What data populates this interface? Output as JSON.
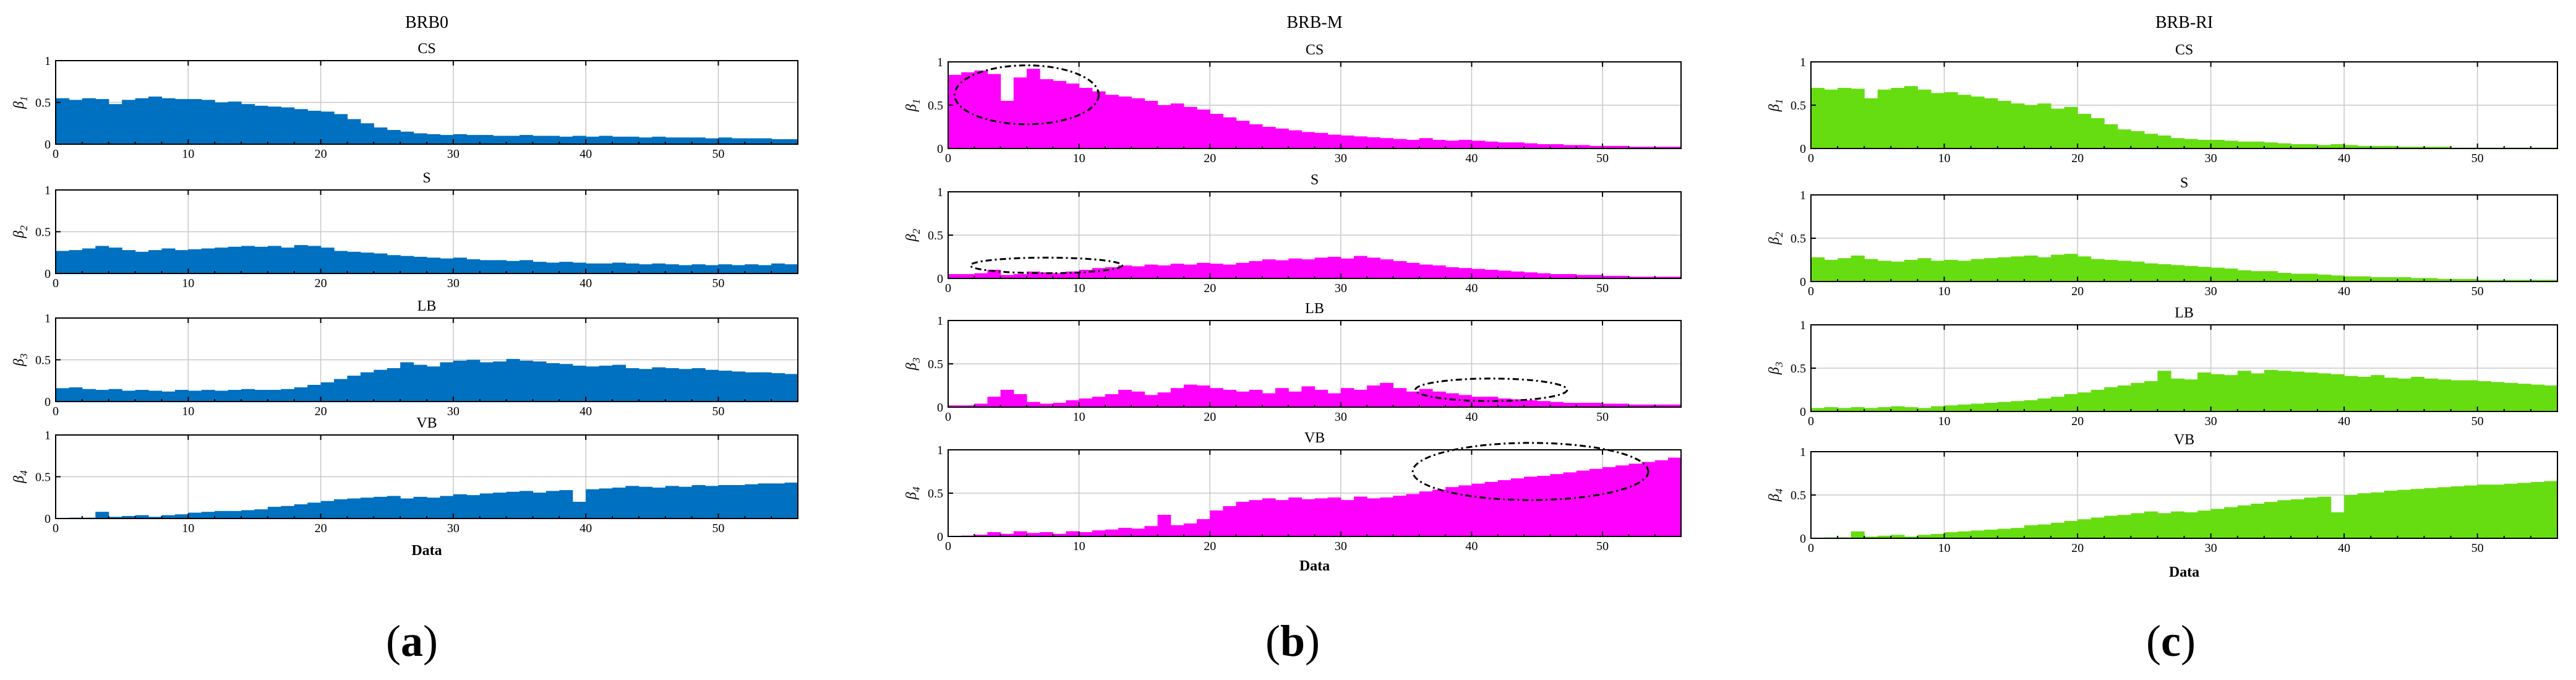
{
  "panels": [
    {
      "key": "a",
      "title": "BRB0",
      "caption_letter": "a",
      "color": "#0070c0",
      "xlabel": "Data",
      "subplots": [
        {
          "title": "CS",
          "ylabel": "β1",
          "ylabel_base": "β",
          "ylabel_sub": "1",
          "values": [
            0.55,
            0.53,
            0.55,
            0.54,
            0.48,
            0.53,
            0.55,
            0.57,
            0.55,
            0.54,
            0.54,
            0.53,
            0.5,
            0.51,
            0.48,
            0.46,
            0.45,
            0.44,
            0.42,
            0.4,
            0.39,
            0.36,
            0.3,
            0.25,
            0.2,
            0.17,
            0.15,
            0.13,
            0.12,
            0.11,
            0.12,
            0.11,
            0.11,
            0.1,
            0.1,
            0.11,
            0.1,
            0.1,
            0.09,
            0.1,
            0.09,
            0.1,
            0.09,
            0.09,
            0.08,
            0.09,
            0.08,
            0.08,
            0.08,
            0.07,
            0.08,
            0.07,
            0.07,
            0.07,
            0.06,
            0.06
          ]
        },
        {
          "title": "S",
          "ylabel": "β2",
          "ylabel_base": "β",
          "ylabel_sub": "2",
          "values": [
            0.27,
            0.28,
            0.3,
            0.33,
            0.31,
            0.28,
            0.26,
            0.28,
            0.3,
            0.28,
            0.29,
            0.3,
            0.31,
            0.32,
            0.33,
            0.32,
            0.33,
            0.31,
            0.34,
            0.33,
            0.31,
            0.27,
            0.26,
            0.25,
            0.24,
            0.22,
            0.21,
            0.2,
            0.19,
            0.18,
            0.19,
            0.17,
            0.16,
            0.16,
            0.15,
            0.16,
            0.14,
            0.13,
            0.14,
            0.13,
            0.12,
            0.12,
            0.13,
            0.12,
            0.11,
            0.12,
            0.11,
            0.1,
            0.11,
            0.1,
            0.11,
            0.1,
            0.11,
            0.1,
            0.12,
            0.11
          ]
        },
        {
          "title": "LB",
          "ylabel": "β3",
          "ylabel_base": "β",
          "ylabel_sub": "3",
          "values": [
            0.16,
            0.17,
            0.15,
            0.14,
            0.15,
            0.13,
            0.14,
            0.13,
            0.12,
            0.14,
            0.13,
            0.14,
            0.13,
            0.14,
            0.15,
            0.14,
            0.14,
            0.15,
            0.17,
            0.2,
            0.23,
            0.27,
            0.31,
            0.35,
            0.38,
            0.4,
            0.47,
            0.44,
            0.42,
            0.47,
            0.49,
            0.5,
            0.47,
            0.48,
            0.51,
            0.49,
            0.48,
            0.46,
            0.45,
            0.43,
            0.42,
            0.43,
            0.44,
            0.4,
            0.39,
            0.41,
            0.4,
            0.39,
            0.4,
            0.38,
            0.37,
            0.36,
            0.35,
            0.35,
            0.34,
            0.33
          ]
        },
        {
          "title": "VB",
          "ylabel": "β4",
          "ylabel_base": "β",
          "ylabel_sub": "4",
          "values": [
            0.0,
            0.01,
            0.01,
            0.08,
            0.02,
            0.03,
            0.04,
            0.02,
            0.04,
            0.05,
            0.07,
            0.08,
            0.09,
            0.09,
            0.1,
            0.11,
            0.14,
            0.15,
            0.17,
            0.19,
            0.21,
            0.23,
            0.24,
            0.25,
            0.26,
            0.27,
            0.24,
            0.26,
            0.25,
            0.27,
            0.29,
            0.28,
            0.3,
            0.31,
            0.32,
            0.33,
            0.31,
            0.33,
            0.34,
            0.2,
            0.35,
            0.36,
            0.37,
            0.39,
            0.38,
            0.37,
            0.39,
            0.38,
            0.4,
            0.39,
            0.4,
            0.4,
            0.41,
            0.42,
            0.42,
            0.43
          ]
        }
      ]
    },
    {
      "key": "b",
      "title": "BRB-M",
      "caption_letter": "b",
      "color": "#ff00ff",
      "xlabel": "Data",
      "subplots": [
        {
          "title": "CS",
          "ylabel": "β1",
          "ylabel_base": "β",
          "ylabel_sub": "1",
          "values": [
            0.85,
            0.88,
            0.9,
            0.86,
            0.55,
            0.82,
            0.92,
            0.8,
            0.78,
            0.75,
            0.7,
            0.66,
            0.62,
            0.6,
            0.58,
            0.55,
            0.5,
            0.52,
            0.48,
            0.45,
            0.4,
            0.36,
            0.32,
            0.28,
            0.25,
            0.23,
            0.21,
            0.19,
            0.18,
            0.16,
            0.15,
            0.14,
            0.13,
            0.12,
            0.11,
            0.1,
            0.12,
            0.1,
            0.09,
            0.1,
            0.09,
            0.08,
            0.07,
            0.07,
            0.06,
            0.05,
            0.05,
            0.04,
            0.04,
            0.03,
            0.03,
            0.03,
            0.02,
            0.02,
            0.02,
            0.02
          ]
        },
        {
          "title": "S",
          "ylabel": "β2",
          "ylabel_base": "β",
          "ylabel_sub": "2",
          "values": [
            0.05,
            0.05,
            0.06,
            0.1,
            0.04,
            0.05,
            0.08,
            0.07,
            0.06,
            0.08,
            0.1,
            0.12,
            0.13,
            0.15,
            0.14,
            0.16,
            0.15,
            0.17,
            0.16,
            0.18,
            0.17,
            0.16,
            0.18,
            0.2,
            0.22,
            0.21,
            0.23,
            0.22,
            0.24,
            0.25,
            0.23,
            0.26,
            0.24,
            0.22,
            0.2,
            0.18,
            0.16,
            0.15,
            0.13,
            0.12,
            0.11,
            0.1,
            0.09,
            0.08,
            0.07,
            0.06,
            0.05,
            0.05,
            0.04,
            0.04,
            0.03,
            0.03,
            0.02,
            0.02,
            0.02,
            0.02
          ]
        },
        {
          "title": "LB",
          "ylabel": "β3",
          "ylabel_base": "β",
          "ylabel_sub": "3",
          "values": [
            0.02,
            0.02,
            0.04,
            0.12,
            0.2,
            0.15,
            0.06,
            0.04,
            0.05,
            0.08,
            0.1,
            0.12,
            0.15,
            0.2,
            0.18,
            0.14,
            0.17,
            0.22,
            0.26,
            0.25,
            0.22,
            0.2,
            0.18,
            0.2,
            0.16,
            0.22,
            0.18,
            0.24,
            0.2,
            0.16,
            0.22,
            0.2,
            0.25,
            0.28,
            0.22,
            0.18,
            0.21,
            0.18,
            0.16,
            0.14,
            0.12,
            0.12,
            0.1,
            0.09,
            0.08,
            0.07,
            0.06,
            0.05,
            0.05,
            0.05,
            0.04,
            0.04,
            0.03,
            0.03,
            0.03,
            0.03
          ]
        },
        {
          "title": "VB",
          "ylabel": "β4",
          "ylabel_base": "β",
          "ylabel_sub": "4",
          "values": [
            0.0,
            0.01,
            0.02,
            0.05,
            0.03,
            0.06,
            0.04,
            0.05,
            0.03,
            0.06,
            0.05,
            0.07,
            0.08,
            0.1,
            0.09,
            0.12,
            0.25,
            0.13,
            0.15,
            0.2,
            0.3,
            0.35,
            0.4,
            0.42,
            0.44,
            0.42,
            0.45,
            0.43,
            0.44,
            0.45,
            0.42,
            0.46,
            0.44,
            0.45,
            0.47,
            0.49,
            0.52,
            0.54,
            0.57,
            0.59,
            0.61,
            0.63,
            0.65,
            0.67,
            0.69,
            0.7,
            0.72,
            0.74,
            0.76,
            0.78,
            0.8,
            0.82,
            0.84,
            0.86,
            0.88,
            0.91
          ]
        }
      ]
    },
    {
      "key": "c",
      "title": "BRB-RI",
      "caption_letter": "c",
      "color": "#66dd11",
      "xlabel": "Data",
      "subplots": [
        {
          "title": "CS",
          "ylabel": "β1",
          "ylabel_base": "β",
          "ylabel_sub": "1",
          "values": [
            0.7,
            0.68,
            0.7,
            0.69,
            0.58,
            0.68,
            0.7,
            0.72,
            0.68,
            0.64,
            0.65,
            0.62,
            0.6,
            0.58,
            0.55,
            0.52,
            0.5,
            0.52,
            0.46,
            0.48,
            0.4,
            0.35,
            0.28,
            0.22,
            0.2,
            0.17,
            0.15,
            0.12,
            0.11,
            0.1,
            0.1,
            0.09,
            0.08,
            0.08,
            0.07,
            0.06,
            0.05,
            0.05,
            0.04,
            0.05,
            0.04,
            0.03,
            0.03,
            0.03,
            0.02,
            0.02,
            0.02,
            0.02,
            0.01,
            0.01,
            0.01,
            0.01,
            0.01,
            0.01,
            0.01,
            0.01
          ]
        },
        {
          "title": "S",
          "ylabel": "β2",
          "ylabel_base": "β",
          "ylabel_sub": "2",
          "values": [
            0.28,
            0.25,
            0.27,
            0.3,
            0.26,
            0.24,
            0.23,
            0.25,
            0.27,
            0.24,
            0.25,
            0.24,
            0.26,
            0.27,
            0.28,
            0.29,
            0.3,
            0.28,
            0.31,
            0.32,
            0.29,
            0.26,
            0.25,
            0.24,
            0.23,
            0.21,
            0.2,
            0.19,
            0.18,
            0.17,
            0.16,
            0.15,
            0.13,
            0.12,
            0.12,
            0.1,
            0.09,
            0.09,
            0.08,
            0.07,
            0.06,
            0.06,
            0.05,
            0.05,
            0.05,
            0.04,
            0.04,
            0.03,
            0.03,
            0.03,
            0.02,
            0.02,
            0.02,
            0.02,
            0.02,
            0.02
          ]
        },
        {
          "title": "LB",
          "ylabel": "β3",
          "ylabel_base": "β",
          "ylabel_sub": "3",
          "values": [
            0.04,
            0.05,
            0.04,
            0.05,
            0.04,
            0.05,
            0.06,
            0.05,
            0.04,
            0.06,
            0.07,
            0.08,
            0.09,
            0.1,
            0.11,
            0.12,
            0.13,
            0.15,
            0.17,
            0.2,
            0.22,
            0.25,
            0.28,
            0.3,
            0.33,
            0.35,
            0.47,
            0.38,
            0.37,
            0.45,
            0.43,
            0.42,
            0.47,
            0.44,
            0.48,
            0.47,
            0.46,
            0.45,
            0.44,
            0.43,
            0.41,
            0.4,
            0.42,
            0.39,
            0.38,
            0.4,
            0.38,
            0.37,
            0.36,
            0.36,
            0.35,
            0.34,
            0.33,
            0.32,
            0.31,
            0.3
          ]
        },
        {
          "title": "VB",
          "ylabel": "β4",
          "ylabel_base": "β",
          "ylabel_sub": "4",
          "values": [
            0.0,
            0.01,
            0.01,
            0.08,
            0.02,
            0.03,
            0.04,
            0.02,
            0.04,
            0.05,
            0.07,
            0.08,
            0.09,
            0.1,
            0.11,
            0.12,
            0.15,
            0.16,
            0.18,
            0.2,
            0.22,
            0.24,
            0.26,
            0.27,
            0.29,
            0.31,
            0.29,
            0.31,
            0.3,
            0.32,
            0.34,
            0.36,
            0.38,
            0.4,
            0.42,
            0.44,
            0.45,
            0.47,
            0.48,
            0.3,
            0.5,
            0.52,
            0.53,
            0.55,
            0.56,
            0.57,
            0.58,
            0.59,
            0.6,
            0.61,
            0.62,
            0.62,
            0.63,
            0.64,
            0.65,
            0.66
          ]
        }
      ]
    }
  ],
  "chart_data": [
    {
      "type": "bar",
      "panel": "BRB0",
      "x_ticks": [
        0,
        10,
        20,
        30,
        40,
        50
      ],
      "xlim": [
        0,
        56
      ],
      "ylim": [
        0,
        1
      ],
      "y_ticks": [
        0,
        0.5,
        1
      ],
      "y_tick_labels": [
        "0",
        "0.5",
        "1"
      ],
      "grid": true,
      "xlabel": "Data",
      "series_names": [
        "CS",
        "S",
        "LB",
        "VB"
      ]
    },
    {
      "type": "bar",
      "panel": "BRB-M",
      "x_ticks": [
        0,
        10,
        20,
        30,
        40,
        50
      ],
      "xlim": [
        0,
        56
      ],
      "ylim": [
        0,
        1
      ],
      "y_ticks": [
        0,
        0.5,
        1
      ],
      "y_tick_labels": [
        "0",
        "0.5",
        "1"
      ],
      "grid": true,
      "xlabel": "Data",
      "series_names": [
        "CS",
        "S",
        "LB",
        "VB"
      ]
    },
    {
      "type": "bar",
      "panel": "BRB-RI",
      "x_ticks": [
        0,
        10,
        20,
        30,
        40,
        50
      ],
      "xlim": [
        0,
        56
      ],
      "ylim": [
        0,
        1
      ],
      "y_ticks": [
        0,
        0.5,
        1
      ],
      "y_tick_labels": [
        "0",
        "0.5",
        "1"
      ],
      "grid": true,
      "xlabel": "Data",
      "series_names": [
        "CS",
        "S",
        "LB",
        "VB"
      ]
    }
  ],
  "caption_open": "(",
  "caption_close": ")"
}
